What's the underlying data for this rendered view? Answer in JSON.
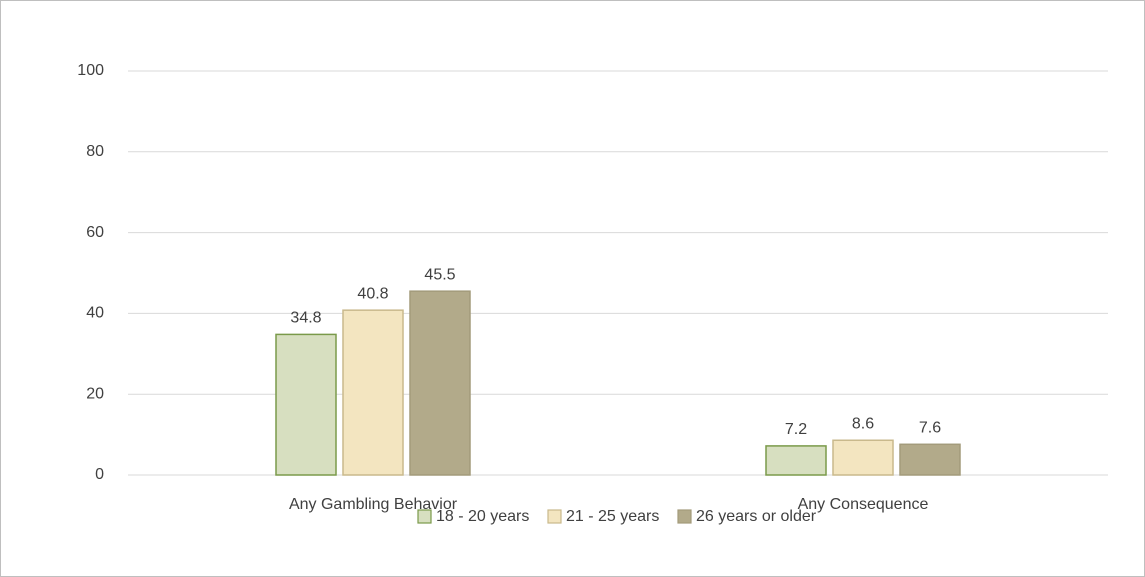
{
  "chart_data": {
    "type": "bar",
    "categories": [
      "Any Gambling Behavior",
      "Any Consequence"
    ],
    "series": [
      {
        "name": "18 - 20 years",
        "color": "#d7dfc0",
        "stroke": "#7a9a4a",
        "values": [
          34.8,
          7.2
        ]
      },
      {
        "name": "21 - 25 years",
        "color": "#f3e5c0",
        "stroke": "#c9b98c",
        "values": [
          40.8,
          8.6
        ]
      },
      {
        "name": "26 years or older",
        "color": "#b2aa8a",
        "stroke": "#a39b7b",
        "values": [
          45.5,
          7.6
        ]
      }
    ],
    "ylim": [
      0,
      100
    ],
    "yticks": [
      0,
      20,
      40,
      60,
      80,
      100
    ],
    "grid": true,
    "legend": "bottom"
  }
}
